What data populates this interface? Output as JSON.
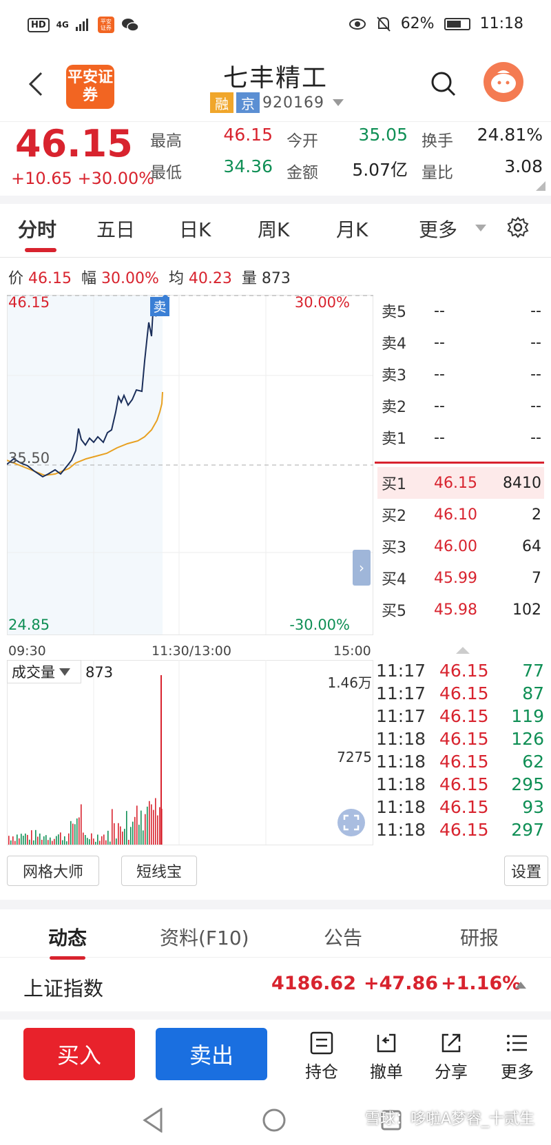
{
  "status": {
    "net": "4G",
    "battery": "62%",
    "time": "11:18"
  },
  "header": {
    "logo": "平安证券",
    "title": "七丰精工",
    "tag_rong": "融",
    "tag_jing": "京",
    "code": "920169"
  },
  "quote": {
    "price": "46.15",
    "change": "+10.65",
    "change_pct": "+30.00%",
    "high_label": "最高",
    "high": "46.15",
    "low_label": "最低",
    "low": "34.36",
    "open_label": "今开",
    "open": "35.05",
    "amount_label": "金额",
    "amount": "5.07亿",
    "turnover_label": "换手",
    "turnover": "24.81%",
    "ratio_label": "量比",
    "ratio": "3.08"
  },
  "tabs": [
    "分时",
    "五日",
    "日K",
    "周K",
    "月K",
    "更多"
  ],
  "info": {
    "price_label": "价",
    "price": "46.15",
    "range_label": "幅",
    "range": "30.00%",
    "avg_label": "均",
    "avg": "40.23",
    "vol_label": "量",
    "vol": "873"
  },
  "chart_labels": {
    "top_price": "46.15",
    "top_pct": "30.00%",
    "mid_price": "35.50",
    "bottom_price": "24.85",
    "bottom_pct": "-30.00%",
    "sell_marker": "卖"
  },
  "time_axis": [
    "09:30",
    "11:30/13:00",
    "15:00"
  ],
  "orderbook": {
    "asks": [
      {
        "label": "卖5",
        "price": "--",
        "vol": "--"
      },
      {
        "label": "卖4",
        "price": "--",
        "vol": "--"
      },
      {
        "label": "卖3",
        "price": "--",
        "vol": "--"
      },
      {
        "label": "卖2",
        "price": "--",
        "vol": "--"
      },
      {
        "label": "卖1",
        "price": "--",
        "vol": "--"
      }
    ],
    "bids": [
      {
        "label": "买1",
        "price": "46.15",
        "vol": "8410"
      },
      {
        "label": "买2",
        "price": "46.10",
        "vol": "2"
      },
      {
        "label": "买3",
        "price": "46.00",
        "vol": "64"
      },
      {
        "label": "买4",
        "price": "45.99",
        "vol": "7"
      },
      {
        "label": "买5",
        "price": "45.98",
        "vol": "102"
      }
    ]
  },
  "volume": {
    "selector": "成交量",
    "current": "873",
    "max_label": "1.46万",
    "mid_label": "7275"
  },
  "trades": [
    {
      "time": "11:17",
      "price": "46.15",
      "vol": "77"
    },
    {
      "time": "11:17",
      "price": "46.15",
      "vol": "87"
    },
    {
      "time": "11:17",
      "price": "46.15",
      "vol": "119"
    },
    {
      "time": "11:18",
      "price": "46.15",
      "vol": "126"
    },
    {
      "time": "11:18",
      "price": "46.15",
      "vol": "62"
    },
    {
      "time": "11:18",
      "price": "46.15",
      "vol": "295"
    },
    {
      "time": "11:18",
      "price": "46.15",
      "vol": "93"
    },
    {
      "time": "11:18",
      "price": "46.15",
      "vol": "297"
    }
  ],
  "tools": {
    "grid": "网格大师",
    "short": "短线宝",
    "settings": "设置"
  },
  "bottom_tabs": [
    "动态",
    "资料(F10)",
    "公告",
    "研报"
  ],
  "index": {
    "name": "上证指数",
    "value": "4186.62",
    "change": "+47.86",
    "pct": "+1.16%"
  },
  "actions": {
    "buy": "买入",
    "sell": "卖出",
    "hold": "持仓",
    "cancel": "撤单",
    "share": "分享",
    "more": "更多"
  },
  "watermark": "雪球：哆啦A梦睿_十贰生",
  "colors": {
    "up": "#d8232e",
    "down": "#0f8f55",
    "price_line": "#1a2e5a",
    "avg_line": "#e8a020"
  }
}
